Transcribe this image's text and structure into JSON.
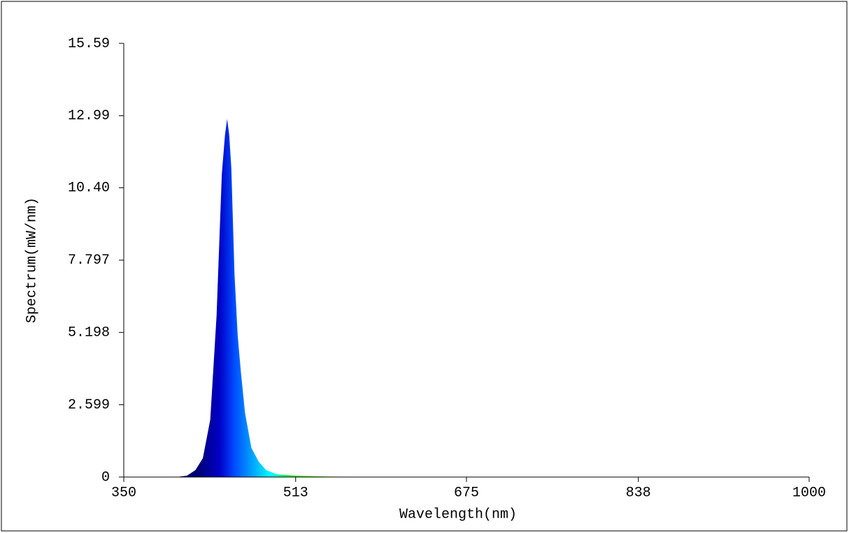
{
  "chart_data": {
    "type": "area",
    "xlabel": "Wavelength(nm)",
    "ylabel": "Spectrum(mW/nm)",
    "xlim": [
      350,
      1000
    ],
    "xticks": [
      350,
      513,
      675,
      838,
      1000
    ],
    "ylim": [
      0,
      15.59
    ],
    "yticks": [
      0,
      2.599,
      5.198,
      7.797,
      {
        "value": 10.4,
        "label": "10.40"
      },
      12.99,
      15.59
    ],
    "x": [
      350,
      400,
      410,
      418,
      425,
      432,
      438,
      443,
      446,
      448,
      450,
      452,
      455,
      458,
      461,
      465,
      471,
      478,
      485,
      495,
      511,
      544,
      597,
      700,
      1000
    ],
    "values": [
      0,
      0,
      0.05,
      0.25,
      0.68,
      2.06,
      5.8,
      10.9,
      12.3,
      12.87,
      12.3,
      11.1,
      7.3,
      5.1,
      3.8,
      2.3,
      1.05,
      0.55,
      0.25,
      0.1,
      0.05,
      0.02,
      0,
      0,
      0
    ]
  }
}
